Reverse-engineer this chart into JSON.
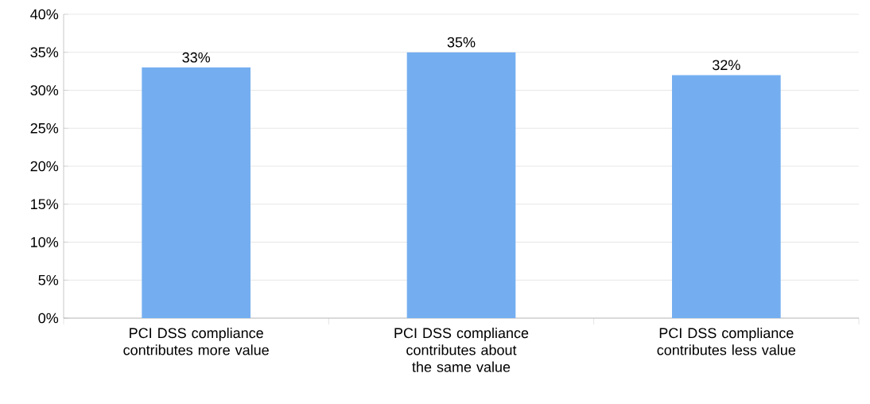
{
  "chart_data": {
    "type": "bar",
    "categories": [
      "PCI DSS compliance contributes more value",
      "PCI DSS compliance contributes about the same value",
      "PCI DSS compliance contributes less value"
    ],
    "values": [
      33,
      35,
      32
    ],
    "value_labels": [
      "33%",
      "35%",
      "32%"
    ],
    "color": "#74aef0",
    "ylim": [
      0,
      40
    ],
    "yticks": [
      {
        "value": 0,
        "label": "0%"
      },
      {
        "value": 5,
        "label": "5%"
      },
      {
        "value": 10,
        "label": "10%"
      },
      {
        "value": 15,
        "label": "15%"
      },
      {
        "value": 20,
        "label": "20%"
      },
      {
        "value": 25,
        "label": "25%"
      },
      {
        "value": 30,
        "label": "30%"
      },
      {
        "value": 35,
        "label": "35%"
      },
      {
        "value": 40,
        "label": "40%"
      }
    ],
    "grid": "y"
  }
}
